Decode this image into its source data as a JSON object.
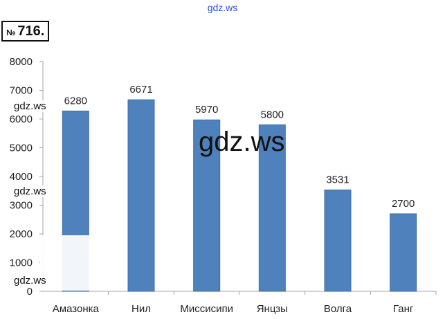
{
  "header": {
    "watermark_top": "gdz.ws",
    "problem_number_sign": "№",
    "problem_number": "716."
  },
  "watermarks": {
    "center": "gdz.ws",
    "left_1": "gdz.ws",
    "left_2": "gdz.ws",
    "left_3": "gdz.ws"
  },
  "colors": {
    "bar": "#4f81bd",
    "bar_edge": "#3e6ea8",
    "grid": "#a6a6a6",
    "text": "#222222"
  },
  "chart_data": {
    "type": "bar",
    "categories": [
      "Амазонка",
      "Нил",
      "Миссисипи",
      "Янцзы",
      "Волга",
      "Ганг"
    ],
    "values": [
      6280,
      6671,
      5970,
      5800,
      3531,
      2700
    ],
    "data_labels": [
      "6280",
      "6671",
      "5970",
      "5800",
      "3531",
      "2700"
    ],
    "ylim": [
      0,
      8000
    ],
    "yticks": [
      0,
      1000,
      2000,
      3000,
      4000,
      5000,
      6000,
      7000,
      8000
    ],
    "ytick_labels": [
      "0",
      "1000",
      "2000",
      "3000",
      "4000",
      "5000",
      "6000",
      "7000",
      "8000"
    ],
    "title": "",
    "xlabel": "",
    "ylabel": "",
    "grid": false,
    "legend": "none"
  }
}
